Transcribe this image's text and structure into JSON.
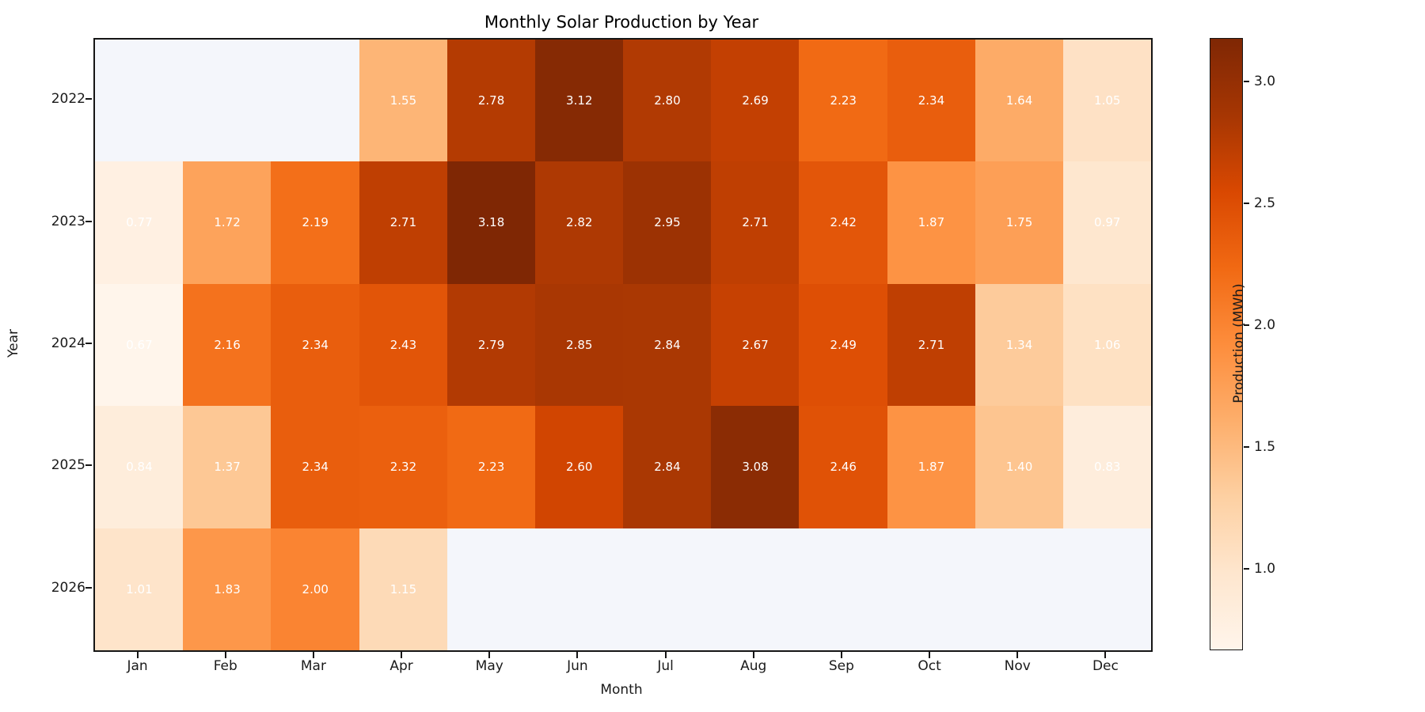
{
  "chart_data": {
    "type": "heatmap",
    "title": "Monthly Solar Production by Year",
    "xlabel": "Month",
    "ylabel": "Year",
    "columns": [
      "Jan",
      "Feb",
      "Mar",
      "Apr",
      "May",
      "Jun",
      "Jul",
      "Aug",
      "Sep",
      "Oct",
      "Nov",
      "Dec"
    ],
    "rows": [
      "2022",
      "2023",
      "2024",
      "2025",
      "2026"
    ],
    "values": [
      [
        null,
        null,
        null,
        1.55,
        2.78,
        3.12,
        2.8,
        2.69,
        2.23,
        2.34,
        1.64,
        1.05
      ],
      [
        0.77,
        1.72,
        2.19,
        2.71,
        3.18,
        2.82,
        2.95,
        2.71,
        2.42,
        1.87,
        1.75,
        0.97
      ],
      [
        0.67,
        2.16,
        2.34,
        2.43,
        2.79,
        2.85,
        2.84,
        2.67,
        2.49,
        2.71,
        1.34,
        1.06
      ],
      [
        0.84,
        1.37,
        2.34,
        2.32,
        2.23,
        2.6,
        2.84,
        3.08,
        2.46,
        1.87,
        1.4,
        0.83
      ],
      [
        1.01,
        1.83,
        2.0,
        1.15,
        null,
        null,
        null,
        null,
        null,
        null,
        null,
        null
      ]
    ],
    "value_decimals": 2,
    "vmin": 0.67,
    "vmax": 3.18,
    "colormap": "Oranges",
    "colormap_stops": [
      "#fff5eb",
      "#fee6ce",
      "#fdd0a2",
      "#fdae6b",
      "#fd8d3c",
      "#f16913",
      "#d94801",
      "#a63603",
      "#7f2704"
    ],
    "nan_color": "#f4f6fb",
    "annotation_color": "#ffffff",
    "axis_color": "#151515",
    "colorbar": {
      "label": "Production (MWh)",
      "ticks": [
        1.0,
        1.5,
        2.0,
        2.5,
        3.0
      ],
      "tick_decimals": 1
    },
    "legend_position": "right-colorbar",
    "grid": false
  }
}
